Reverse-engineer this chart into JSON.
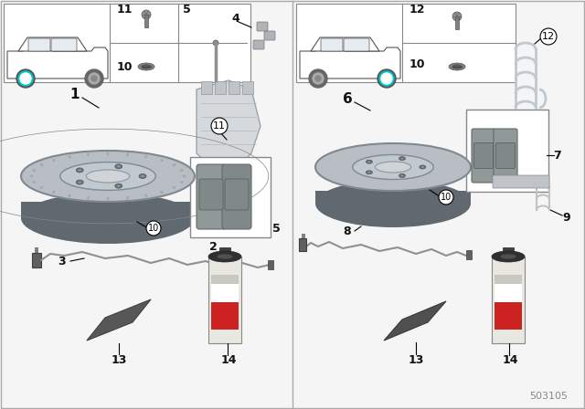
{
  "bg": "#f5f5f5",
  "border": "#888888",
  "part_number": "503105",
  "teal": "#00c8c8",
  "disc_outer": "#a8b0b8",
  "disc_mid": "#c0c8d0",
  "disc_inner": "#b0b8c0",
  "disc_hub": "#d8dce0",
  "disc_edge": "#606870",
  "pad_color": "#909898",
  "pad_dark": "#707878",
  "wire_color": "#909090",
  "can_body": "#1a1a1a",
  "can_label_red": "#cc2222",
  "can_label_white": "#ffffff",
  "can_label_gray": "#888888",
  "grease_color": "#505050",
  "grease_light": "#686868",
  "caliper_color": "#d0d4d8",
  "caliper_edge": "#909898",
  "spring_color": "#c0c8d0",
  "text_color": "#111111",
  "line_color": "#555555",
  "box_color": "#000000"
}
